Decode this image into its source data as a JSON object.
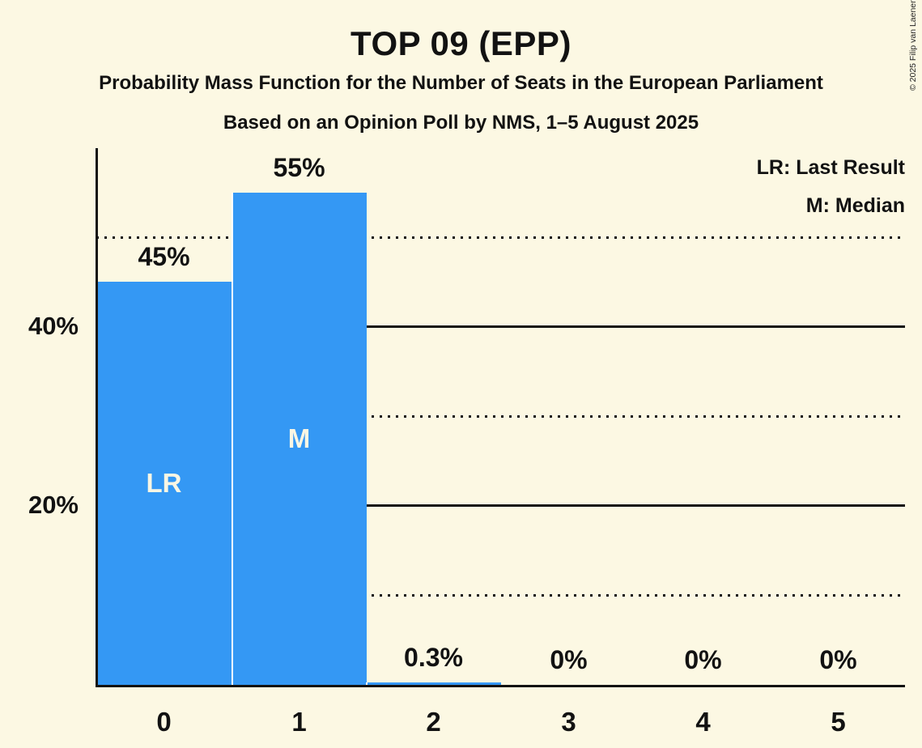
{
  "title": "TOP 09 (EPP)",
  "subtitle": "Probability Mass Function for the Number of Seats in the European Parliament",
  "subsubtitle": "Based on an Opinion Poll by NMS, 1–5 August 2025",
  "copyright": "© 2025 Filip van Laenen",
  "legend": {
    "lr": "LR: Last Result",
    "m": "M: Median"
  },
  "chart_data": {
    "type": "bar",
    "title": "TOP 09 (EPP)",
    "subtitle": "Probability Mass Function for the Number of Seats in the European Parliament",
    "note": "Based on an Opinion Poll by NMS, 1–5 August 2025",
    "categories": [
      "0",
      "1",
      "2",
      "3",
      "4",
      "5"
    ],
    "values": [
      45,
      55,
      0.3,
      0,
      0,
      0
    ],
    "value_labels": [
      "45%",
      "55%",
      "0.3%",
      "0%",
      "0%",
      "0%"
    ],
    "bar_annotations": [
      "LR",
      "M",
      "",
      "",
      "",
      ""
    ],
    "legend_entries": [
      "LR: Last Result",
      "M: Median"
    ],
    "legend_position": "top-right",
    "y_ticks": [
      {
        "value": 40,
        "label": "40%"
      },
      {
        "value": 20,
        "label": "20%"
      }
    ],
    "solid_gridlines": [
      40,
      20
    ],
    "dotted_gridlines": [
      50,
      30,
      10
    ],
    "ylim": [
      0,
      60
    ],
    "xlabel": "",
    "ylabel": "",
    "colors": {
      "bar": "#3498F4",
      "background": "#FCF8E3",
      "text": "#121212",
      "bar_label_text": "#FAF6E4",
      "gridline": "#121212"
    }
  }
}
